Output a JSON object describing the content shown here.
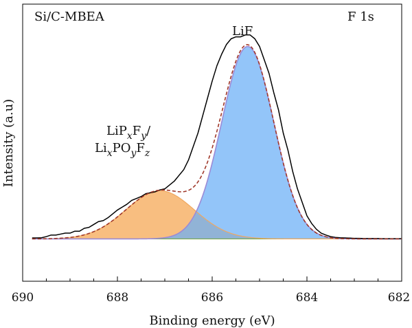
{
  "chart_data": {
    "type": "line",
    "title": "",
    "xlabel": "Binding energy (eV)",
    "ylabel": "Intensity (a.u)",
    "xlim": [
      690,
      682
    ],
    "x_reversed": true,
    "xticks": [
      690,
      688,
      686,
      684,
      682
    ],
    "ylim": [
      -0.22,
      1.22
    ],
    "y_ticks_shown": false,
    "grid": false,
    "legend": "none",
    "annotations": {
      "sample": "Si/C-MBEA",
      "region": "F 1s",
      "lif_label": "LiF",
      "lipf_line1": {
        "a": "LiP",
        "b": "x",
        "c": "F",
        "d": "y",
        "e": "/"
      },
      "lipf_line2": {
        "a": "Li",
        "b": "x",
        "c": "PO",
        "d": "y",
        "e": "F",
        "f": "z"
      }
    },
    "series": [
      {
        "component": "LiPxFy/LixPOyFz",
        "kind": "gaussian",
        "center": 687.1,
        "height": 0.25,
        "sigma": 0.72,
        "fill": "#f7b56e",
        "stroke": "#f0a860"
      },
      {
        "component": "LiF",
        "kind": "gaussian",
        "center": 685.25,
        "height": 1.0,
        "sigma": 0.55,
        "fill": "#6aaef6",
        "stroke": "#9b8ad6"
      },
      {
        "component": "raw",
        "x": [
          689.8,
          689.7,
          689.6,
          689.5,
          689.4,
          689.3,
          689.2,
          689.1,
          689.0,
          688.9,
          688.8,
          688.7,
          688.6,
          688.5,
          688.4,
          688.3,
          688.2,
          688.1,
          688.0,
          687.9,
          687.8,
          687.7,
          687.6,
          687.5,
          687.4,
          687.3,
          687.2,
          687.1,
          687.0,
          686.9,
          686.8,
          686.7,
          686.6,
          686.5,
          686.4,
          686.3,
          686.2,
          686.1,
          686.0,
          685.9,
          685.8,
          685.7,
          685.6,
          685.5,
          685.4,
          685.3,
          685.2,
          685.1,
          685.0,
          684.9,
          684.8,
          684.7,
          684.6,
          684.5,
          684.4,
          684.3,
          684.2,
          684.1,
          684.0,
          683.9,
          683.8,
          683.7,
          683.6,
          683.5,
          683.4,
          683.3,
          683.2,
          683.1,
          683.0,
          682.9,
          682.8,
          682.7,
          682.6,
          682.5,
          682.4,
          682.3,
          682.2,
          682.1,
          682.0
        ],
        "y": [
          0.005,
          0.005,
          0.006,
          0.012,
          0.02,
          0.02,
          0.025,
          0.03,
          0.03,
          0.04,
          0.04,
          0.055,
          0.06,
          0.075,
          0.09,
          0.095,
          0.11,
          0.13,
          0.15,
          0.165,
          0.18,
          0.2,
          0.21,
          0.22,
          0.235,
          0.24,
          0.245,
          0.255,
          0.26,
          0.28,
          0.3,
          0.33,
          0.36,
          0.41,
          0.48,
          0.55,
          0.64,
          0.73,
          0.82,
          0.9,
          0.96,
          1.01,
          1.04,
          1.05,
          1.05,
          1.06,
          1.06,
          1.04,
          1.0,
          0.93,
          0.86,
          0.76,
          0.67,
          0.55,
          0.46,
          0.35,
          0.26,
          0.19,
          0.12,
          0.08,
          0.05,
          0.03,
          0.02,
          0.012,
          0.008,
          0.006,
          0.005,
          0.004,
          0.003,
          0.003,
          0.002,
          0.002,
          0.002,
          0.002,
          0.001,
          0.001,
          0.001,
          0.001,
          0.001
        ],
        "stroke": "#000000"
      },
      {
        "component": "fit envelope",
        "kind": "sum",
        "stroke": "#a0382a",
        "dashed": true
      },
      {
        "component": "background",
        "kind": "baseline",
        "value": 0,
        "stroke": "#7aa84a"
      }
    ]
  }
}
